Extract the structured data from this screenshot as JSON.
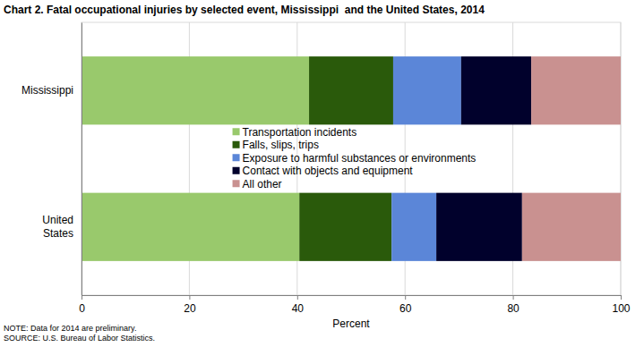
{
  "chart_data": {
    "type": "bar",
    "orientation": "horizontal",
    "stacked": true,
    "title": "Chart 2. Fatal occupational injuries by selected event, Mississippi  and the United States, 2014",
    "categories": [
      "Mississippi",
      "United States"
    ],
    "series": [
      {
        "name": "Transportation incidents",
        "color": "#99c96c",
        "values": [
          42.2,
          40.4
        ]
      },
      {
        "name": "Falls, slips, trips",
        "color": "#2a5a0b",
        "values": [
          15.6,
          17.1
        ]
      },
      {
        "name": "Exposure to harmful substances or environments",
        "color": "#5b86d8",
        "values": [
          12.6,
          8.3
        ]
      },
      {
        "name": "Contact with objects and equipment",
        "color": "#01012c",
        "values": [
          13.0,
          15.9
        ]
      },
      {
        "name": "All other",
        "color": "#c99190",
        "values": [
          16.6,
          18.3
        ]
      }
    ],
    "xlabel": "Percent",
    "xlim": [
      0,
      100
    ],
    "xticks": [
      0,
      20,
      40,
      60,
      80,
      100
    ],
    "grid": true,
    "legend": "center",
    "notes": [
      "NOTE: Data for 2014 are preliminary.",
      "SOURCE: U.S. Bureau of Labor Statistics."
    ]
  }
}
